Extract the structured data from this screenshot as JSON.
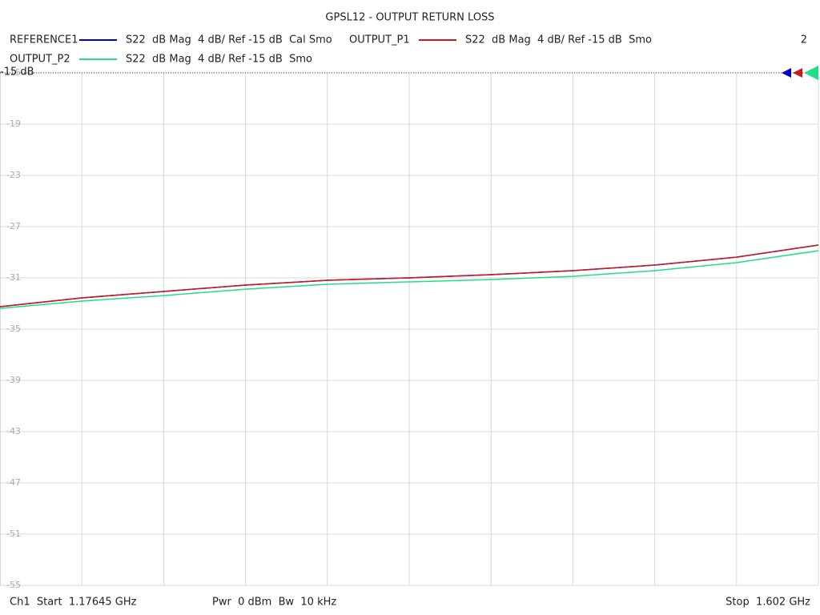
{
  "chart_data": {
    "type": "line",
    "title": "GPSL12 - OUTPUT RETURN LOSS",
    "reference_label": "-15 dB",
    "channel_number": "2",
    "footer": {
      "start": "Ch1  Start  1.17645 GHz",
      "power": "Pwr  0 dBm  Bw  10 kHz",
      "stop": "Stop  1.602 GHz"
    },
    "x": [
      1.17645,
      1.219,
      1.26156,
      1.30412,
      1.34667,
      1.38923,
      1.43178,
      1.47434,
      1.51689,
      1.55945,
      1.602
    ],
    "xlim": [
      1.17645,
      1.602
    ],
    "ylim": [
      -55,
      -15
    ],
    "yticks": [
      -15,
      -19,
      -23,
      -27,
      -31,
      -35,
      -39,
      -43,
      -47,
      -51,
      -55
    ],
    "grid": true,
    "series": [
      {
        "name": "REFERENCE1",
        "description": "S22  dB Mag  4 dB/ Ref -15 dB  Cal Smo",
        "color": "#0000cc",
        "values": [
          -33.25,
          -32.56,
          -32.06,
          -31.56,
          -31.19,
          -31.0,
          -30.75,
          -30.44,
          -30.0,
          -29.38,
          -28.44
        ]
      },
      {
        "name": "OUTPUT_P1",
        "description": "S22  dB Mag  4 dB/ Ref -15 dB  Smo",
        "color": "#cc1a1a",
        "values": [
          -33.25,
          -32.56,
          -32.06,
          -31.56,
          -31.19,
          -31.0,
          -30.75,
          -30.44,
          -30.0,
          -29.38,
          -28.44
        ]
      },
      {
        "name": "OUTPUT_P2",
        "description": "S22  dB Mag  4 dB/ Ref -15 dB  Smo",
        "color": "#22dd88",
        "values": [
          -33.38,
          -32.81,
          -32.38,
          -31.88,
          -31.5,
          -31.31,
          -31.13,
          -30.88,
          -30.44,
          -29.81,
          -28.88
        ]
      }
    ]
  }
}
